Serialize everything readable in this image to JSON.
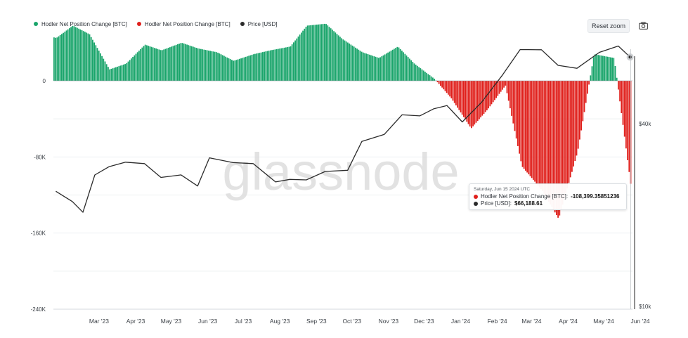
{
  "legend": {
    "items": [
      {
        "label": "Hodler Net Position Change [BTC]",
        "color": "#1aa56b"
      },
      {
        "label": "Hodler Net Position Change [BTC]",
        "color": "#e0201c"
      },
      {
        "label": "Price [USD]",
        "color": "#2b2b2b"
      }
    ]
  },
  "controls": {
    "reset_zoom_label": "Reset zoom",
    "screenshot_icon": "camera-icon"
  },
  "watermark": "glassnode",
  "tooltip": {
    "date": "Saturday, Jun 15 2024 UTC",
    "rows": [
      {
        "color": "#e0201c",
        "label": "Hodler Net Position Change [BTC]: ",
        "value": "-108,399.35851236"
      },
      {
        "color": "#2b2b2b",
        "label": "Price [USD]: ",
        "value": "$66,188.61"
      }
    ]
  },
  "colors": {
    "positive": "#1aa56b",
    "negative": "#e0201c",
    "price": "#2b2b2b",
    "grid": "#eef0f2"
  },
  "chart_data": {
    "type": "bar",
    "x_tick_labels": [
      "Mar '23",
      "Apr '23",
      "May '23",
      "Jun '23",
      "Jul '23",
      "Aug '23",
      "Sep '23",
      "Oct '23",
      "Nov '23",
      "Dec '23",
      "Jan '24",
      "Feb '24",
      "Mar '24",
      "Apr '24",
      "May '24",
      "Jun '24"
    ],
    "y_left": {
      "tick_labels": [
        "0",
        "-80K",
        "-160K",
        "-240K"
      ],
      "ticks": [
        0,
        -80000,
        -160000,
        -240000
      ],
      "range": [
        -240000,
        48000
      ]
    },
    "y_right": {
      "tick_labels": [
        "$40k",
        "$10k"
      ],
      "scale": "log"
    },
    "series": [
      {
        "name": "Hodler Net Position Change [BTC]",
        "type": "bar",
        "x": [
          "2023-02-15",
          "2023-03-01",
          "2023-03-15",
          "2023-04-01",
          "2023-04-15",
          "2023-05-01",
          "2023-05-15",
          "2023-06-01",
          "2023-06-15",
          "2023-07-01",
          "2023-07-15",
          "2023-08-01",
          "2023-08-15",
          "2023-09-01",
          "2023-09-15",
          "2023-10-01",
          "2023-10-15",
          "2023-11-01",
          "2023-11-15",
          "2023-12-01",
          "2023-12-15",
          "2024-01-01",
          "2024-01-15",
          "2024-02-01",
          "2024-02-15",
          "2024-03-01",
          "2024-03-15",
          "2024-04-01",
          "2024-04-15",
          "2024-05-01",
          "2024-05-15",
          "2024-06-01",
          "2024-06-15"
        ],
        "values": [
          45000,
          58000,
          49000,
          12000,
          18000,
          38000,
          32000,
          40000,
          34000,
          30000,
          21000,
          28000,
          32000,
          36000,
          58000,
          60000,
          44000,
          30000,
          24000,
          36000,
          18000,
          2000,
          -18000,
          -50000,
          -30000,
          -5000,
          -90000,
          -115000,
          -145000,
          -75000,
          28000,
          24000,
          -108400
        ]
      },
      {
        "name": "Price [USD]",
        "type": "line",
        "x": [
          "2023-02-15",
          "2023-03-01",
          "2023-03-10",
          "2023-03-20",
          "2023-04-01",
          "2023-04-15",
          "2023-05-01",
          "2023-05-15",
          "2023-06-01",
          "2023-06-15",
          "2023-06-25",
          "2023-07-15",
          "2023-08-01",
          "2023-08-20",
          "2023-09-01",
          "2023-09-15",
          "2023-10-01",
          "2023-10-20",
          "2023-11-01",
          "2023-11-20",
          "2023-12-05",
          "2023-12-20",
          "2024-01-01",
          "2024-01-12",
          "2024-01-25",
          "2024-02-10",
          "2024-02-28",
          "2024-03-14",
          "2024-04-01",
          "2024-04-15",
          "2024-05-01",
          "2024-05-20",
          "2024-06-05",
          "2024-06-15"
        ],
        "values": [
          24000,
          22500,
          20200,
          27500,
          28500,
          30300,
          29200,
          27000,
          26800,
          25300,
          30500,
          30200,
          29200,
          26100,
          25900,
          26500,
          27500,
          28500,
          34500,
          37400,
          42200,
          43000,
          44200,
          46500,
          40000,
          47500,
          57000,
          71000,
          69000,
          63000,
          60000,
          69500,
          71000,
          66188.61
        ]
      }
    ]
  }
}
